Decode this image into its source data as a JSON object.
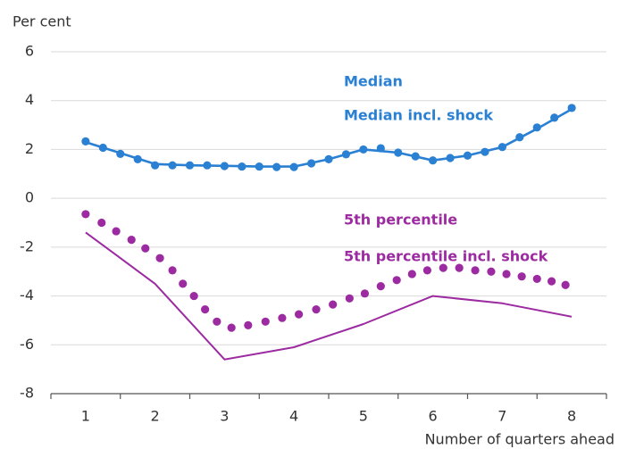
{
  "chart_data": {
    "type": "line",
    "y_label": "Per cent",
    "x_label": "Number of quarters ahead",
    "xlim": [
      0.5,
      8.5
    ],
    "xticks": [
      1,
      2,
      3,
      4,
      5,
      6,
      7,
      8
    ],
    "xtick_marks": [
      0.5,
      1.5,
      2.5,
      3.5,
      4.5,
      5.5,
      6.5,
      7.5,
      8.5
    ],
    "ylim": [
      -8,
      6
    ],
    "yticks": [
      -8,
      -6,
      -4,
      -2,
      0,
      2,
      4,
      6
    ],
    "grid": true,
    "series": [
      {
        "name": "Median",
        "color": "#2a80d2",
        "style": "solid",
        "x": [
          1,
          1.5,
          2,
          2.5,
          3,
          3.5,
          4,
          4.5,
          5,
          5.5,
          6,
          6.5,
          7,
          7.5,
          8
        ],
        "values": [
          2.3,
          1.85,
          1.4,
          1.35,
          1.33,
          1.3,
          1.3,
          1.6,
          2.0,
          1.87,
          1.55,
          1.75,
          2.1,
          2.85,
          3.65
        ]
      },
      {
        "name": "Median incl. shock",
        "color": "#2a80d2",
        "style": "dotted",
        "x": [
          1,
          1.25,
          1.5,
          1.75,
          2,
          2.25,
          2.5,
          2.75,
          3,
          3.25,
          3.5,
          3.75,
          4,
          4.25,
          4.5,
          4.75,
          5,
          5.25,
          5.5,
          5.75,
          6,
          6.25,
          6.5,
          6.75,
          7,
          7.25,
          7.5,
          7.75,
          8
        ],
        "values": [
          2.33,
          2.07,
          1.82,
          1.6,
          1.35,
          1.35,
          1.35,
          1.35,
          1.32,
          1.3,
          1.3,
          1.28,
          1.28,
          1.43,
          1.6,
          1.8,
          2.0,
          2.05,
          1.87,
          1.72,
          1.55,
          1.65,
          1.75,
          1.9,
          2.1,
          2.5,
          2.9,
          3.3,
          3.7
        ]
      },
      {
        "name": "5th percentile",
        "color": "#9c2aa0",
        "style": "solid",
        "x": [
          1,
          2,
          3,
          4,
          5,
          6,
          7,
          8
        ],
        "values": [
          -1.4,
          -3.5,
          -6.6,
          -6.1,
          -5.15,
          -4.0,
          -4.3,
          -4.85
        ]
      },
      {
        "name": "5th percentile incl. shock",
        "color": "#9c2aa0",
        "style": "dotted",
        "x": [
          1,
          1.23,
          1.44,
          1.66,
          1.86,
          2.07,
          2.25,
          2.4,
          2.56,
          2.72,
          2.89,
          3.1,
          3.34,
          3.59,
          3.83,
          4.07,
          4.32,
          4.56,
          4.8,
          5.02,
          5.25,
          5.48,
          5.7,
          5.92,
          6.15,
          6.38,
          6.61,
          6.84,
          7.06,
          7.28,
          7.5,
          7.71,
          7.91
        ],
        "values": [
          -0.65,
          -1.0,
          -1.35,
          -1.7,
          -2.05,
          -2.45,
          -2.95,
          -3.5,
          -4.0,
          -4.55,
          -5.05,
          -5.3,
          -5.2,
          -5.05,
          -4.9,
          -4.75,
          -4.55,
          -4.35,
          -4.1,
          -3.9,
          -3.6,
          -3.35,
          -3.1,
          -2.95,
          -2.85,
          -2.85,
          -2.95,
          -3.0,
          -3.1,
          -3.2,
          -3.3,
          -3.4,
          -3.55
        ]
      }
    ]
  }
}
